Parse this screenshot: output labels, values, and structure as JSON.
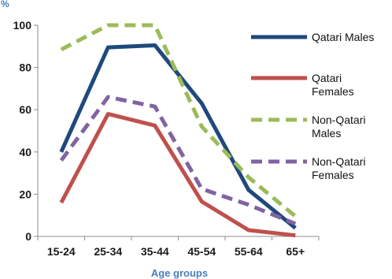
{
  "chart_data": {
    "type": "line",
    "unit_label": "%",
    "xlabel": "Age groups",
    "categories": [
      "15-24",
      "25-34",
      "35-44",
      "45-54",
      "55-64",
      "65+"
    ],
    "ylim": [
      0,
      100
    ],
    "yticks": [
      "0",
      "20",
      "40",
      "60",
      "80",
      "100"
    ],
    "grid": false,
    "legend_position": "right",
    "series": [
      {
        "name": "Qatari Males",
        "legend_lines": [
          "Qatari Males"
        ],
        "color": "#1f497d",
        "style": "solid",
        "values": [
          40,
          89.5,
          90.5,
          63,
          22,
          4
        ]
      },
      {
        "name": "Qatari Females",
        "legend_lines": [
          "Qatari",
          "Females"
        ],
        "color": "#c0504d",
        "style": "solid",
        "values": [
          16,
          58,
          52.5,
          16.5,
          3,
          0.5
        ]
      },
      {
        "name": "Non-Qatari Males",
        "legend_lines": [
          "Non-Qatari",
          "Males"
        ],
        "color": "#9bbb59",
        "style": "dashed",
        "values": [
          88.5,
          100,
          100,
          52,
          28,
          9.5
        ]
      },
      {
        "name": "Non-Qatari Females",
        "legend_lines": [
          "Non-Qatari",
          "Females"
        ],
        "color": "#8064a2",
        "style": "dashed",
        "values": [
          36,
          66,
          61.5,
          22.5,
          15,
          6
        ]
      }
    ]
  }
}
